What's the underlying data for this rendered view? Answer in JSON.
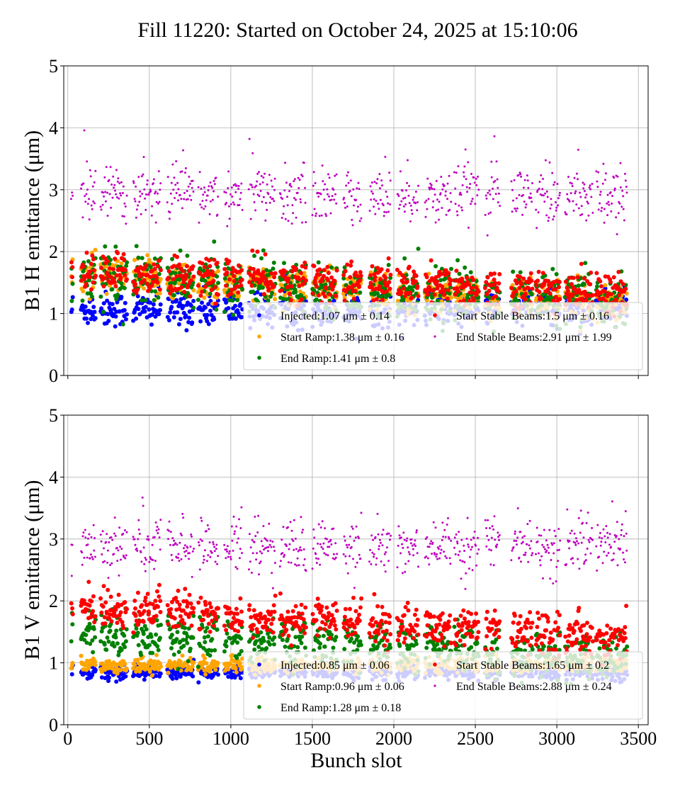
{
  "chart_data": {
    "title": "Fill 11220: Started on October 24, 2025 at 15:10:06",
    "xlabel": "Bunch slot",
    "xlim": [
      -25,
      3560
    ],
    "xticks": [
      0,
      500,
      1000,
      1500,
      2000,
      2500,
      3000,
      3500
    ],
    "trains": [
      [
        20,
        30
      ],
      [
        80,
        170
      ],
      [
        200,
        360
      ],
      [
        400,
        570
      ],
      [
        610,
        770
      ],
      [
        800,
        920
      ],
      [
        960,
        1070
      ],
      [
        1110,
        1270
      ],
      [
        1300,
        1460
      ],
      [
        1500,
        1650
      ],
      [
        1690,
        1800
      ],
      [
        1850,
        1980
      ],
      [
        2020,
        2150
      ],
      [
        2190,
        2350
      ],
      [
        2370,
        2520
      ],
      [
        2560,
        2650
      ],
      [
        2720,
        2850
      ],
      [
        2870,
        3020
      ],
      [
        3050,
        3220
      ],
      [
        3240,
        3430
      ]
    ],
    "panels": [
      {
        "type": "scatter",
        "ylabel": "B1 H emittance (μm)",
        "ylim": [
          0,
          5
        ],
        "yticks": [
          0,
          1,
          2,
          3,
          4,
          5
        ],
        "grid": true,
        "legend_placement": "lower-right",
        "series": [
          {
            "name": "Injected",
            "mean": 1.07,
            "std": 0.14,
            "unit": "μm",
            "color": "#0000ff"
          },
          {
            "name": "Start Ramp",
            "mean": 1.38,
            "std": 0.16,
            "unit": "μm",
            "color": "#ffa500"
          },
          {
            "name": "End Ramp",
            "mean": 1.41,
            "std": 0.8,
            "unit": "μm",
            "color": "#008000"
          },
          {
            "name": "Start Stable Beams",
            "mean": 1.5,
            "std": 0.16,
            "unit": "μm",
            "color": "#ff0000"
          },
          {
            "name": "End Stable Beams",
            "mean": 2.91,
            "std": 1.99,
            "unit": "μm",
            "color": "#bf00bf"
          }
        ]
      },
      {
        "type": "scatter",
        "ylabel": "B1 V emittance (μm)",
        "ylim": [
          0,
          5
        ],
        "yticks": [
          0,
          1,
          2,
          3,
          4,
          5
        ],
        "grid": true,
        "legend_placement": "lower-right",
        "series": [
          {
            "name": "Injected",
            "mean": 0.85,
            "std": 0.06,
            "unit": "μm",
            "color": "#0000ff"
          },
          {
            "name": "Start Ramp",
            "mean": 0.96,
            "std": 0.06,
            "unit": "μm",
            "color": "#ffa500"
          },
          {
            "name": "End Ramp",
            "mean": 1.28,
            "std": 0.18,
            "unit": "μm",
            "color": "#008000"
          },
          {
            "name": "Start Stable Beams",
            "mean": 1.65,
            "std": 0.2,
            "unit": "μm",
            "color": "#ff0000"
          },
          {
            "name": "End Stable Beams",
            "mean": 2.88,
            "std": 0.24,
            "unit": "μm",
            "color": "#bf00bf"
          }
        ]
      }
    ]
  }
}
